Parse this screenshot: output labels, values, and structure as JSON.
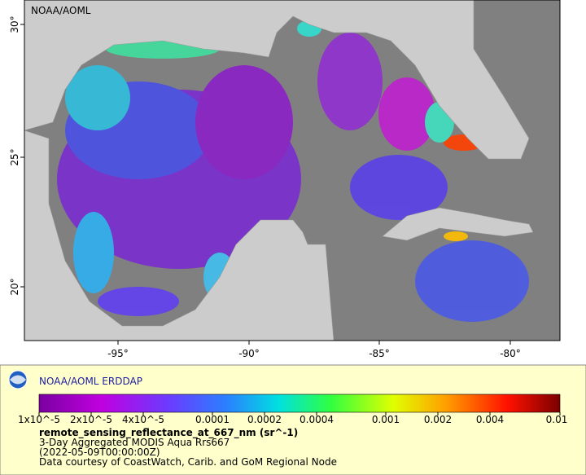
{
  "map": {
    "watermark": "NOAA/AOML",
    "lon_labels": [
      "-95°",
      "-90°",
      "-85°",
      "-80°"
    ],
    "lat_labels": [
      "30°",
      "25°",
      "20°"
    ]
  },
  "legend": {
    "title": "NOAA/AOML ERDDAP",
    "colorbar_labels": [
      "1x10^-5",
      "2x10^-5",
      "4x10^-5",
      "0.0001",
      "0.0002",
      "0.0004",
      "0.001",
      "0.002",
      "0.004",
      "0.01"
    ],
    "variable": "remote_sensing_reflectance_at_667_nm (sr^-1)",
    "lines": [
      "3-Day Aggregated MODIS Aqua Rrs667",
      "(2022-05-09T00:00:00Z)",
      "Data courtesy of CoastWatch, Carib. and GoM Regional Node"
    ]
  }
}
